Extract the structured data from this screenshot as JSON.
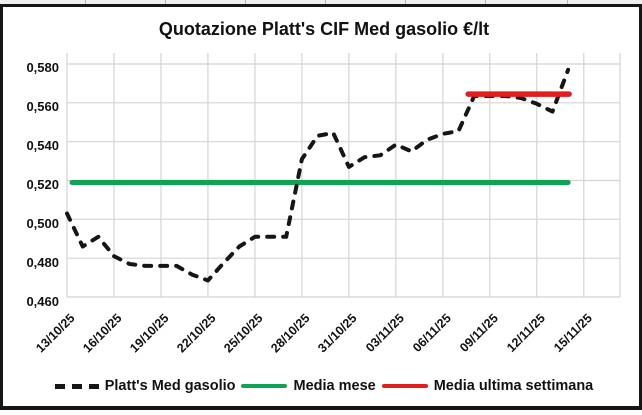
{
  "title": "Quotazione Platt's CIF Med gasolio €/lt",
  "colors": {
    "platts_line": "#161616",
    "media_mese": "#0fa455",
    "media_settimana": "#e11d1d",
    "gridline": "#d4d4d4",
    "text": "#111111"
  },
  "axes": {
    "y_ticks": [
      "0,580",
      "0,560",
      "0,540",
      "0,520",
      "0,500",
      "0,480",
      "0,460"
    ],
    "x_ticks": [
      "13/10/25",
      "16/10/25",
      "19/10/25",
      "22/10/25",
      "25/10/25",
      "28/10/25",
      "31/10/25",
      "03/11/25",
      "06/11/25",
      "09/11/25",
      "12/11/25",
      "15/11/25"
    ]
  },
  "legend": {
    "items": [
      {
        "label": "Platt's Med gasolio",
        "style": "dashed",
        "color": "#161616"
      },
      {
        "label": "Media mese",
        "style": "solid",
        "color": "#0fa455"
      },
      {
        "label": "Media ultima settimana",
        "style": "solid",
        "color": "#e11d1d"
      }
    ]
  },
  "chart_data": {
    "type": "line",
    "title": "Quotazione Platt's CIF Med gasolio €/lt",
    "ylabel": "€/lt",
    "ylim": [
      0.46,
      0.586
    ],
    "y_tick_step": 0.02,
    "y_number_format": "comma-decimal",
    "grid": true,
    "legend_position": "bottom",
    "x_dates": [
      "13/10/25",
      "14/10/25",
      "15/10/25",
      "16/10/25",
      "17/10/25",
      "18/10/25",
      "19/10/25",
      "20/10/25",
      "21/10/25",
      "22/10/25",
      "23/10/25",
      "24/10/25",
      "25/10/25",
      "26/10/25",
      "27/10/25",
      "28/10/25",
      "29/10/25",
      "30/10/25",
      "31/10/25",
      "01/11/25",
      "02/11/25",
      "03/11/25",
      "04/11/25",
      "05/11/25",
      "06/11/25",
      "07/11/25",
      "08/11/25",
      "09/11/25",
      "10/11/25",
      "11/11/25",
      "12/11/25",
      "13/11/25",
      "14/11/25"
    ],
    "series": [
      {
        "name": "Platt's Med gasolio",
        "kind": "daily-quotes",
        "line": "dashed",
        "color": "#161616",
        "values": [
          0.503,
          0.486,
          0.491,
          0.481,
          0.477,
          0.476,
          0.476,
          0.476,
          0.4715,
          0.4685,
          0.4775,
          0.486,
          0.491,
          0.491,
          0.491,
          0.531,
          0.543,
          0.5445,
          0.527,
          0.532,
          0.533,
          0.5385,
          0.535,
          0.541,
          0.544,
          0.5455,
          0.5635,
          0.5635,
          0.5635,
          0.5625,
          0.5595,
          0.5555,
          0.577
        ]
      },
      {
        "name": "Media mese",
        "kind": "constant",
        "line": "solid",
        "color": "#0fa455",
        "value": 0.519,
        "span_dates": [
          "13/10/25",
          "14/11/25"
        ]
      },
      {
        "name": "Media ultima settimana",
        "kind": "constant",
        "line": "solid",
        "color": "#e11d1d",
        "value": 0.5645,
        "span_dates": [
          "08/11/25",
          "14/11/25"
        ]
      }
    ]
  }
}
